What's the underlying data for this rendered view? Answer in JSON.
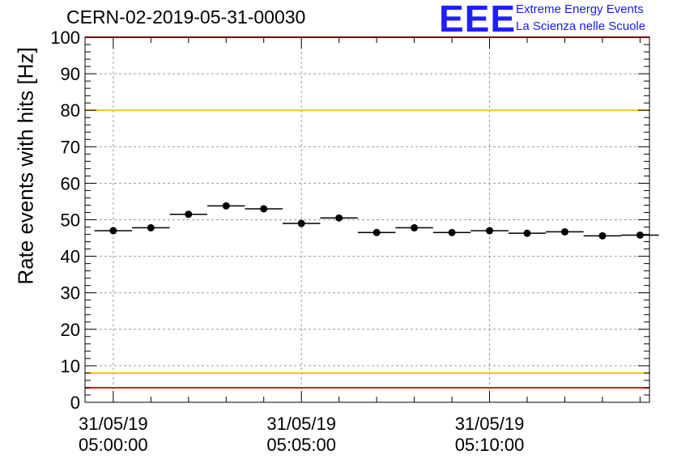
{
  "chart_data": {
    "type": "scatter",
    "title": "CERN-02-2019-05-31-00030",
    "ylabel": "Rate events with hits [Hz]",
    "xlabel": "",
    "ylim": [
      0,
      100
    ],
    "yticks": [
      0,
      10,
      20,
      30,
      40,
      50,
      60,
      70,
      80,
      90,
      100
    ],
    "xlim_minutes": [
      -0.75,
      14.25
    ],
    "xticks": [
      {
        "x": 0,
        "date": "31/05/19",
        "time": "05:00:00"
      },
      {
        "x": 5,
        "date": "31/05/19",
        "time": "05:05:00"
      },
      {
        "x": 10,
        "date": "31/05/19",
        "time": "05:10:00"
      }
    ],
    "grid": true,
    "bin_width_minutes": 1,
    "series": [
      {
        "x": [
          0,
          1,
          2,
          3,
          4,
          5,
          6,
          7,
          8,
          9,
          10,
          11,
          12,
          13,
          14
        ],
        "y": [
          47.0,
          47.8,
          51.5,
          53.8,
          53.0,
          49.0,
          50.5,
          46.5,
          47.8,
          46.5,
          47.0,
          46.3,
          46.7,
          45.6,
          45.8
        ]
      }
    ],
    "reference_lines": [
      {
        "y": 80,
        "color": "#f2c40f"
      },
      {
        "y": 8,
        "color": "#f2c40f"
      },
      {
        "y": 4,
        "color": "#ee1111"
      },
      {
        "y": 100,
        "color": "#ee1111"
      }
    ]
  },
  "logo": {
    "mark": "EEE",
    "line1": "Extreme Energy Events",
    "line2": "La Scienza nelle Scuole",
    "color": "#1f1fff"
  }
}
